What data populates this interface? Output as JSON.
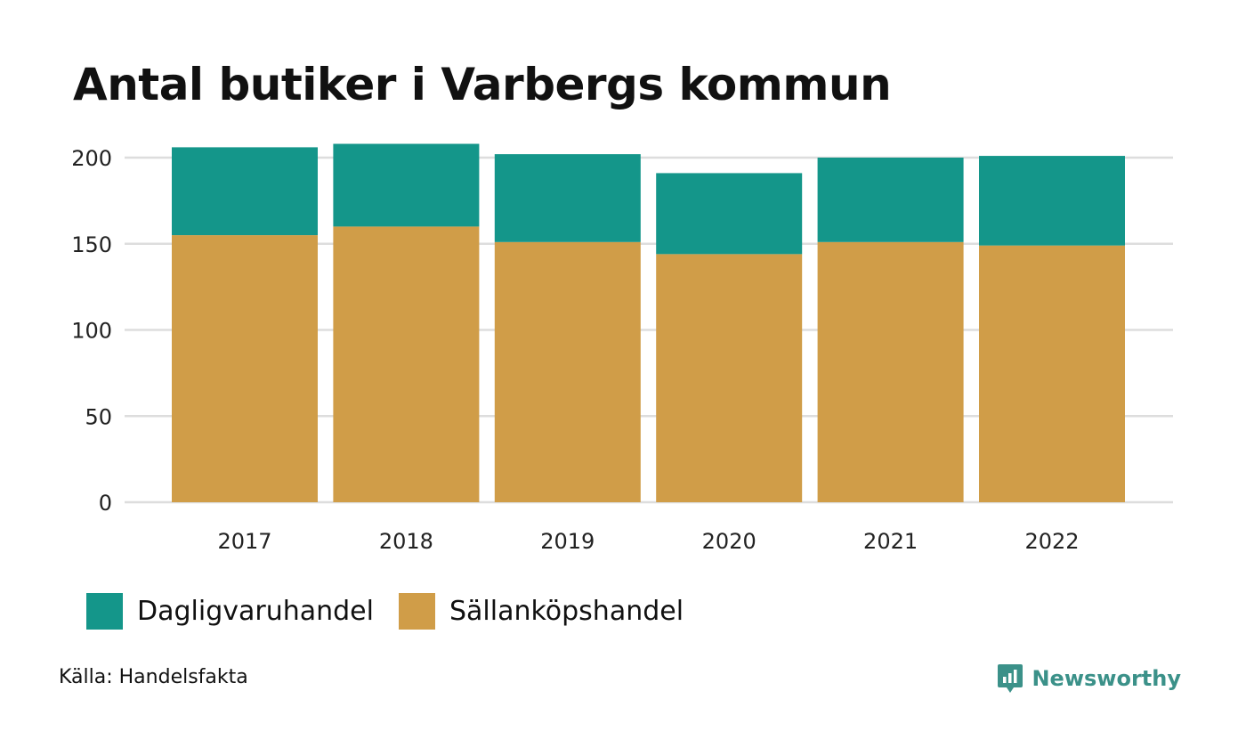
{
  "title": "Antal butiker i Varbergs kommun",
  "chart_data": {
    "type": "bar",
    "stacked": true,
    "categories": [
      "2017",
      "2018",
      "2019",
      "2020",
      "2021",
      "2022"
    ],
    "series": [
      {
        "name": "Sällanköpshandel",
        "color": "#d09d48",
        "values": [
          155,
          160,
          151,
          144,
          151,
          149
        ]
      },
      {
        "name": "Dagligvaruhandel",
        "color": "#14968a",
        "values": [
          51,
          48,
          51,
          47,
          49,
          52
        ]
      }
    ],
    "ylim": [
      0,
      210
    ],
    "yticks": [
      0,
      50,
      100,
      150,
      200
    ],
    "grid": true,
    "legend_position": "bottom-left"
  },
  "legend": [
    {
      "label": "Dagligvaruhandel",
      "color": "#14968a"
    },
    {
      "label": "Sällanköpshandel",
      "color": "#d09d48"
    }
  ],
  "source": "Källa: Handelsfakta",
  "brand": {
    "name": "Newsworthy",
    "icon": "newsworthy-logo-icon",
    "color": "#3b9189"
  }
}
